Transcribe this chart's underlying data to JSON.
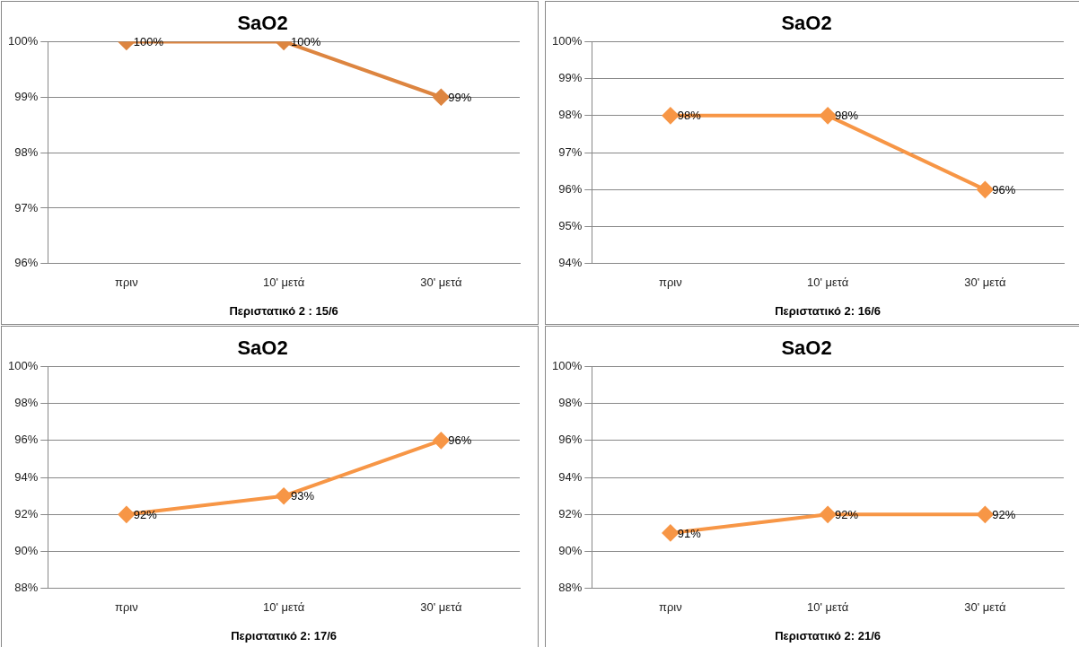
{
  "chart_data": [
    {
      "type": "line",
      "title": "SaO2",
      "xlabel": "Περιστατικό 2 : 15/6",
      "categories": [
        "πριν",
        "10' μετά",
        "30' μετά"
      ],
      "series": [
        {
          "color": "#dd8540",
          "values": [
            100,
            100,
            99
          ],
          "value_labels": [
            "100%",
            "100%",
            "99%"
          ]
        }
      ],
      "ylim": [
        96,
        100
      ],
      "yticks": [
        {
          "value": 96,
          "label": "96%"
        },
        {
          "value": 97,
          "label": "97%"
        },
        {
          "value": 98,
          "label": "98%"
        },
        {
          "value": 99,
          "label": "99%"
        },
        {
          "value": 100,
          "label": "100%"
        }
      ],
      "grid": "y",
      "marker": "diamond",
      "line_style": "solid"
    },
    {
      "type": "line",
      "title": "SaO2",
      "xlabel": "Περιστατικό 2: 16/6",
      "categories": [
        "πριν",
        "10' μετά",
        "30' μετά"
      ],
      "series": [
        {
          "color": "#f79646",
          "values": [
            98,
            98,
            96
          ],
          "value_labels": [
            "98%",
            "98%",
            "96%"
          ]
        }
      ],
      "ylim": [
        94,
        100
      ],
      "yticks": [
        {
          "value": 94,
          "label": "94%"
        },
        {
          "value": 95,
          "label": "95%"
        },
        {
          "value": 96,
          "label": "96%"
        },
        {
          "value": 97,
          "label": "97%"
        },
        {
          "value": 98,
          "label": "98%"
        },
        {
          "value": 99,
          "label": "99%"
        },
        {
          "value": 100,
          "label": "100%"
        }
      ],
      "grid": "y",
      "marker": "diamond",
      "line_style": "solid"
    },
    {
      "type": "line",
      "title": "SaO2",
      "xlabel": "Περιστατικό 2: 17/6",
      "categories": [
        "πριν",
        "10' μετά",
        "30' μετά"
      ],
      "series": [
        {
          "color": "#f79646",
          "values": [
            92,
            93,
            96
          ],
          "value_labels": [
            "92%",
            "93%",
            "96%"
          ]
        }
      ],
      "ylim": [
        88,
        100
      ],
      "yticks": [
        {
          "value": 88,
          "label": "88%"
        },
        {
          "value": 90,
          "label": "90%"
        },
        {
          "value": 92,
          "label": "92%"
        },
        {
          "value": 94,
          "label": "94%"
        },
        {
          "value": 96,
          "label": "96%"
        },
        {
          "value": 98,
          "label": "98%"
        },
        {
          "value": 100,
          "label": "100%"
        }
      ],
      "grid": "y",
      "marker": "diamond",
      "line_style": "solid"
    },
    {
      "type": "line",
      "title": "SaO2",
      "xlabel": "Περιστατικό 2: 21/6",
      "categories": [
        "πριν",
        "10' μετά",
        "30' μετά"
      ],
      "series": [
        {
          "color": "#f79646",
          "values": [
            91,
            92,
            92
          ],
          "value_labels": [
            "91%",
            "92%",
            "92%"
          ]
        }
      ],
      "ylim": [
        88,
        100
      ],
      "yticks": [
        {
          "value": 88,
          "label": "88%"
        },
        {
          "value": 90,
          "label": "90%"
        },
        {
          "value": 92,
          "label": "92%"
        },
        {
          "value": 94,
          "label": "94%"
        },
        {
          "value": 96,
          "label": "96%"
        },
        {
          "value": 98,
          "label": "98%"
        },
        {
          "value": 100,
          "label": "100%"
        }
      ],
      "grid": "y",
      "marker": "diamond",
      "line_style": "solid"
    }
  ]
}
